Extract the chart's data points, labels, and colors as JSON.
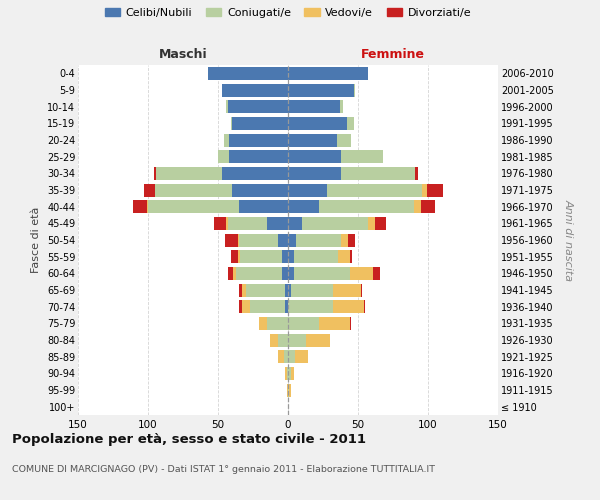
{
  "age_groups": [
    "100+",
    "95-99",
    "90-94",
    "85-89",
    "80-84",
    "75-79",
    "70-74",
    "65-69",
    "60-64",
    "55-59",
    "50-54",
    "45-49",
    "40-44",
    "35-39",
    "30-34",
    "25-29",
    "20-24",
    "15-19",
    "10-14",
    "5-9",
    "0-4"
  ],
  "birth_years": [
    "≤ 1910",
    "1911-1915",
    "1916-1920",
    "1921-1925",
    "1926-1930",
    "1931-1935",
    "1936-1940",
    "1941-1945",
    "1946-1950",
    "1951-1955",
    "1956-1960",
    "1961-1965",
    "1966-1970",
    "1971-1975",
    "1976-1980",
    "1981-1985",
    "1986-1990",
    "1991-1995",
    "1996-2000",
    "2001-2005",
    "2006-2010"
  ],
  "maschi": {
    "celibi": [
      0,
      0,
      0,
      0,
      0,
      0,
      2,
      2,
      4,
      4,
      7,
      15,
      35,
      40,
      47,
      42,
      42,
      40,
      43,
      47,
      57
    ],
    "coniugati": [
      0,
      0,
      1,
      3,
      7,
      15,
      25,
      28,
      33,
      30,
      28,
      28,
      65,
      55,
      47,
      8,
      4,
      1,
      1,
      0,
      0
    ],
    "vedovi": [
      0,
      1,
      1,
      4,
      6,
      6,
      6,
      3,
      2,
      2,
      1,
      1,
      1,
      0,
      0,
      0,
      0,
      0,
      0,
      0,
      0
    ],
    "divorziati": [
      0,
      0,
      0,
      0,
      0,
      0,
      2,
      2,
      4,
      5,
      9,
      9,
      10,
      8,
      2,
      0,
      0,
      0,
      0,
      0,
      0
    ]
  },
  "femmine": {
    "nubili": [
      0,
      0,
      0,
      0,
      0,
      0,
      0,
      2,
      4,
      4,
      6,
      10,
      22,
      28,
      38,
      38,
      35,
      42,
      37,
      47,
      57
    ],
    "coniugate": [
      0,
      1,
      2,
      5,
      13,
      22,
      32,
      30,
      40,
      32,
      32,
      47,
      68,
      68,
      53,
      30,
      10,
      5,
      2,
      1,
      0
    ],
    "vedove": [
      0,
      1,
      2,
      9,
      17,
      22,
      22,
      20,
      17,
      8,
      5,
      5,
      5,
      3,
      0,
      0,
      0,
      0,
      0,
      0,
      0
    ],
    "divorziate": [
      0,
      0,
      0,
      0,
      0,
      1,
      1,
      1,
      5,
      2,
      5,
      8,
      10,
      12,
      2,
      0,
      0,
      0,
      0,
      0,
      0
    ]
  },
  "colors": {
    "celibi": "#4b78b0",
    "coniugati": "#b8cfa0",
    "vedovi": "#f0c060",
    "divorziati": "#c82020"
  },
  "xlim": 150,
  "title": "Popolazione per età, sesso e stato civile - 2011",
  "subtitle": "COMUNE DI MARCIGNAGO (PV) - Dati ISTAT 1° gennaio 2011 - Elaborazione TUTTITALIA.IT",
  "ylabel_left": "Fasce di età",
  "ylabel_right": "Anni di nascita",
  "xlabel_maschi": "Maschi",
  "xlabel_femmine": "Femmine",
  "bg_color": "#f0f0f0",
  "plot_bg": "#ffffff",
  "legend_labels": [
    "Celibi/Nubili",
    "Coniugati/e",
    "Vedovi/e",
    "Divorziati/e"
  ]
}
